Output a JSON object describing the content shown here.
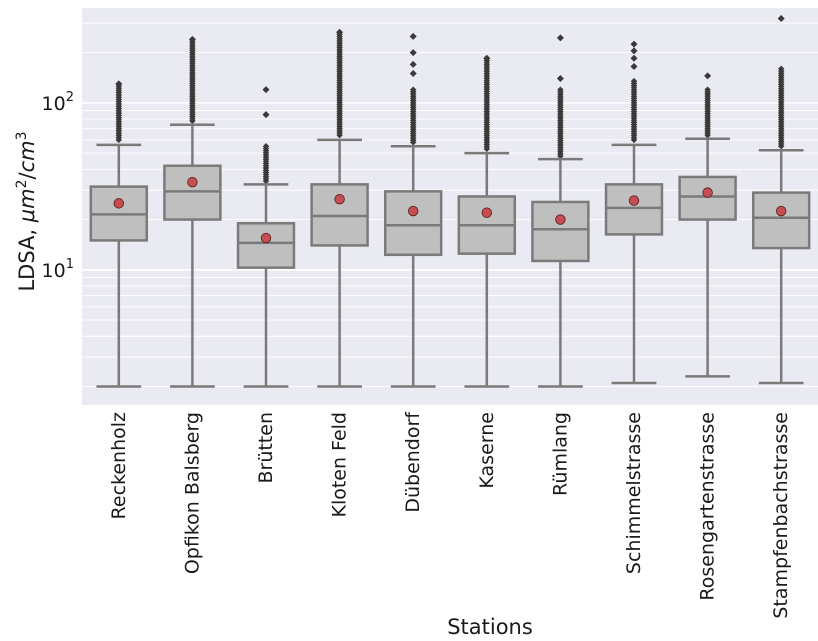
{
  "chart_data": {
    "type": "box",
    "xlabel": "Stations",
    "ylabel_prefix": "LDSA, ",
    "ylabel_unit": {
      "num": "μm",
      "num_exp": "2",
      "den": "cm",
      "den_exp": "3"
    },
    "yscale": "log",
    "ylim": [
      1.55,
      370
    ],
    "y_ticks": [
      {
        "value": 10,
        "base": "10",
        "exp": "1"
      },
      {
        "value": 100,
        "base": "10",
        "exp": "2"
      }
    ],
    "grid": true,
    "colors": {
      "plot_bg": "#eaeaf2",
      "grid": "#ffffff",
      "box_fill": "#bfbfbf",
      "box_edge": "#7a7a7a",
      "mean_marker": "#c44e52",
      "mean_edge": "#5a1a1a",
      "flier": "#3a3a3a"
    },
    "categories": [
      "Reckenholz",
      "Opfikon Balsberg",
      "Brütten",
      "Kloten Feld",
      "Dübendorf",
      "Kaserne",
      "Rümlang",
      "Schimmelstrasse",
      "Rosengartenstrasse",
      "Stampfenbachstrasse"
    ],
    "boxes": [
      {
        "whislo": 2.0,
        "q1": 15.0,
        "med": 21.5,
        "q3": 31.5,
        "whishi": 56,
        "mean": 25.0,
        "fliers_top": 130,
        "flier_start": 60,
        "outliers": [
          130
        ]
      },
      {
        "whislo": 2.0,
        "q1": 20.0,
        "med": 29.5,
        "q3": 42.0,
        "whishi": 74,
        "mean": 33.5,
        "fliers_top": 240,
        "flier_start": 78,
        "outliers": [
          240
        ]
      },
      {
        "whislo": 2.0,
        "q1": 10.3,
        "med": 14.5,
        "q3": 19.0,
        "whishi": 32.5,
        "mean": 15.5,
        "fliers_top": 55,
        "flier_start": 34,
        "outliers": [
          85,
          120
        ]
      },
      {
        "whislo": 2.0,
        "q1": 14.0,
        "med": 21.0,
        "q3": 32.5,
        "whishi": 60,
        "mean": 26.5,
        "fliers_top": 265,
        "flier_start": 64,
        "outliers": [
          265
        ]
      },
      {
        "whislo": 2.0,
        "q1": 12.3,
        "med": 18.5,
        "q3": 29.5,
        "whishi": 55,
        "mean": 22.5,
        "fliers_top": 120,
        "flier_start": 58,
        "outliers": [
          150,
          170,
          200,
          250
        ]
      },
      {
        "whislo": 2.0,
        "q1": 12.5,
        "med": 18.5,
        "q3": 27.5,
        "whishi": 50,
        "mean": 22.0,
        "fliers_top": 185,
        "flier_start": 53,
        "outliers": [
          185
        ]
      },
      {
        "whislo": 2.0,
        "q1": 11.3,
        "med": 17.5,
        "q3": 25.5,
        "whishi": 46,
        "mean": 20.0,
        "fliers_top": 120,
        "flier_start": 48,
        "outliers": [
          140,
          245
        ]
      },
      {
        "whislo": 2.1,
        "q1": 16.3,
        "med": 23.5,
        "q3": 32.5,
        "whishi": 56,
        "mean": 26.0,
        "fliers_top": 135,
        "flier_start": 60,
        "outliers": [
          165,
          185,
          205,
          225
        ]
      },
      {
        "whislo": 2.3,
        "q1": 20.0,
        "med": 27.5,
        "q3": 36.0,
        "whishi": 61,
        "mean": 29.0,
        "fliers_top": 120,
        "flier_start": 64,
        "outliers": [
          145
        ]
      },
      {
        "whislo": 2.1,
        "q1": 13.5,
        "med": 20.5,
        "q3": 29.0,
        "whishi": 52,
        "mean": 22.5,
        "fliers_top": 160,
        "flier_start": 55,
        "outliers": [
          320
        ]
      }
    ]
  }
}
